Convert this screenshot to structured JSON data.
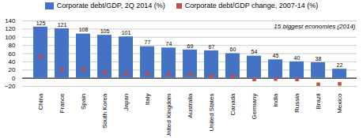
{
  "chart_data": {
    "type": "bar",
    "title": "15 biggest economies (2014)",
    "categories": [
      "China",
      "France",
      "Spain",
      "South Korea",
      "Japan",
      "Italy",
      "United Kingdom",
      "Australia",
      "United States",
      "Canada",
      "Germany",
      "India",
      "Russia",
      "Brazil",
      "Mexico"
    ],
    "series": [
      {
        "name": "Corporate debt/GDP, 2Q 2014 (%)",
        "type": "bar",
        "color": "#4472C4",
        "values": [
          125,
          121,
          108,
          105,
          101,
          77,
          74,
          69,
          67,
          60,
          54,
          45,
          40,
          38,
          22
        ],
        "data_labels": true
      },
      {
        "name": "Corporate debt/GDP change, 2007-14 (%)",
        "type": "scatter",
        "marker": "square",
        "color": "#C0504D",
        "values": [
          52,
          20,
          21,
          14,
          12,
          11,
          9,
          9,
          6,
          5,
          -3,
          -2,
          -3,
          -15,
          -14
        ]
      }
    ],
    "ylim": [
      -20,
      140
    ],
    "yticks": [
      -20,
      0,
      20,
      40,
      60,
      80,
      100,
      120,
      140
    ],
    "grid": true,
    "legend": "top"
  }
}
